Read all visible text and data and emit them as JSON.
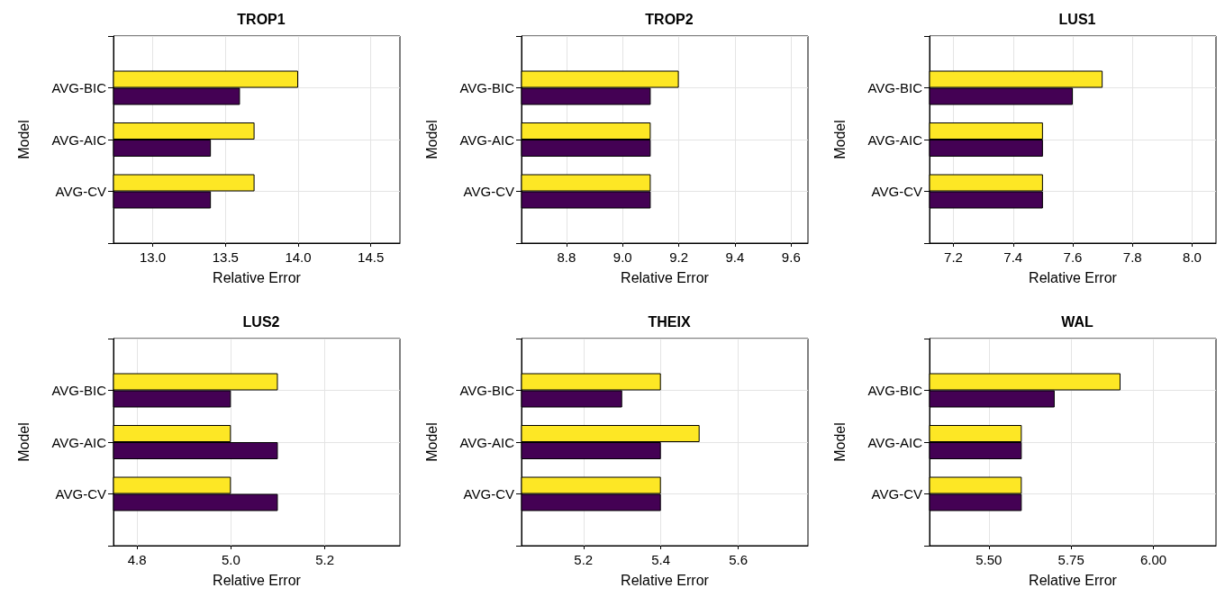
{
  "chart_data": [
    {
      "type": "bar",
      "orientation": "horizontal",
      "title": "TROP1",
      "xlabel": "Relative Error",
      "ylabel": "Model",
      "categories": [
        "AVG-BIC",
        "AVG-AIC",
        "AVG-CV"
      ],
      "series": [
        {
          "color": "#fde725",
          "values": [
            14.0,
            13.7,
            13.7
          ]
        },
        {
          "color": "#440154",
          "values": [
            13.6,
            13.4,
            13.4
          ]
        }
      ],
      "xlim": [
        12.73,
        14.7
      ],
      "xticks": [
        {
          "value": 13,
          "label": "13.0"
        },
        13.5,
        {
          "value": 14,
          "label": "14.0"
        },
        14.5
      ],
      "grid": true
    },
    {
      "type": "bar",
      "orientation": "horizontal",
      "title": "TROP2",
      "xlabel": "Relative Error",
      "ylabel": "Model",
      "categories": [
        "AVG-BIC",
        "AVG-AIC",
        "AVG-CV"
      ],
      "series": [
        {
          "color": "#fde725",
          "values": [
            9.2,
            9.1,
            9.1
          ]
        },
        {
          "color": "#440154",
          "values": [
            9.1,
            9.1,
            9.1
          ]
        }
      ],
      "xlim": [
        8.64,
        9.66
      ],
      "xticks": [
        8.8,
        {
          "value": 9,
          "label": "9.0"
        },
        9.2,
        9.4,
        9.6
      ],
      "grid": true
    },
    {
      "type": "bar",
      "orientation": "horizontal",
      "title": "LUS1",
      "xlabel": "Relative Error",
      "ylabel": "Model",
      "categories": [
        "AVG-BIC",
        "AVG-AIC",
        "AVG-CV"
      ],
      "series": [
        {
          "color": "#fde725",
          "values": [
            7.7,
            7.5,
            7.5
          ]
        },
        {
          "color": "#440154",
          "values": [
            7.6,
            7.5,
            7.5
          ]
        }
      ],
      "xlim": [
        7.12,
        8.08
      ],
      "xticks": [
        7.2,
        7.4,
        7.6,
        7.8,
        {
          "value": 8,
          "label": "8.0"
        }
      ],
      "grid": true
    },
    {
      "type": "bar",
      "orientation": "horizontal",
      "title": "LUS2",
      "xlabel": "Relative Error",
      "ylabel": "Model",
      "categories": [
        "AVG-BIC",
        "AVG-AIC",
        "AVG-CV"
      ],
      "series": [
        {
          "color": "#fde725",
          "values": [
            5.1,
            5.0,
            5.0
          ]
        },
        {
          "color": "#440154",
          "values": [
            5.0,
            5.1,
            5.1
          ]
        }
      ],
      "xlim": [
        4.75,
        5.36
      ],
      "xticks": [
        4.8,
        {
          "value": 5,
          "label": "5.0"
        },
        5.2
      ],
      "grid": true
    },
    {
      "type": "bar",
      "orientation": "horizontal",
      "title": "THEIX",
      "xlabel": "Relative Error",
      "ylabel": "Model",
      "categories": [
        "AVG-BIC",
        "AVG-AIC",
        "AVG-CV"
      ],
      "series": [
        {
          "color": "#fde725",
          "values": [
            5.4,
            5.5,
            5.4
          ]
        },
        {
          "color": "#440154",
          "values": [
            5.3,
            5.4,
            5.4
          ]
        }
      ],
      "xlim": [
        5.04,
        5.78
      ],
      "xticks": [
        5.2,
        5.4,
        5.6
      ],
      "grid": true
    },
    {
      "type": "bar",
      "orientation": "horizontal",
      "title": "WAL",
      "xlabel": "Relative Error",
      "ylabel": "Model",
      "categories": [
        "AVG-BIC",
        "AVG-AIC",
        "AVG-CV"
      ],
      "series": [
        {
          "color": "#fde725",
          "values": [
            5.9,
            5.6,
            5.6
          ]
        },
        {
          "color": "#440154",
          "values": [
            5.7,
            5.6,
            5.6
          ]
        }
      ],
      "xlim": [
        5.32,
        6.19
      ],
      "xticks": [
        {
          "value": 5.5,
          "label": "5.50"
        },
        5.75,
        {
          "value": 6,
          "label": "6.00"
        }
      ],
      "grid": true
    }
  ]
}
